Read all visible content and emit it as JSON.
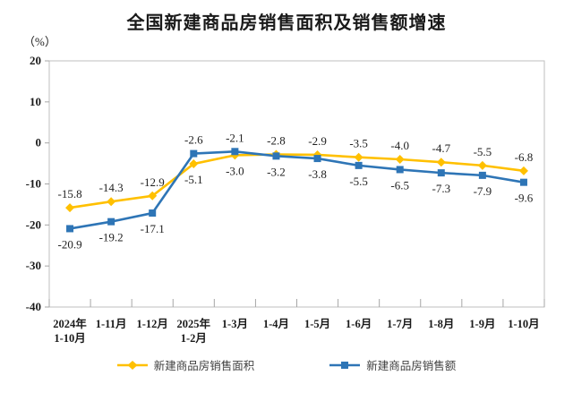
{
  "chart_data": {
    "type": "line",
    "title": "全国新建商品房销售面积及销售额增速",
    "unit_label": "（%）",
    "categories": [
      "2024年\n1-10月",
      "1-11月",
      "1-12月",
      "2025年\n1-2月",
      "1-3月",
      "1-4月",
      "1-5月",
      "1-6月",
      "1-7月",
      "1-8月",
      "1-9月",
      "1-10月"
    ],
    "series": [
      {
        "name": "新建商品房销售面积",
        "marker": "diamond",
        "color": "#FFC000",
        "values": [
          -15.8,
          -14.3,
          -12.9,
          -5.1,
          -3.0,
          -2.8,
          -2.9,
          -3.5,
          -4.0,
          -4.7,
          -5.5,
          -6.8
        ]
      },
      {
        "name": "新建商品房销售额",
        "marker": "square",
        "color": "#2E75B6",
        "values": [
          -20.9,
          -19.2,
          -17.1,
          -2.6,
          -2.1,
          -3.2,
          -3.8,
          -5.5,
          -6.5,
          -7.3,
          -7.9,
          -9.6
        ]
      }
    ],
    "ylim": [
      -40,
      20
    ],
    "yticks": [
      20,
      10,
      0,
      -10,
      -20,
      -30,
      -40
    ],
    "grid": false,
    "legend_position": "bottom",
    "axis_color": "#BFBFBF",
    "tick_color": "#A6A6A6",
    "label_color": "#1A1A1A"
  }
}
